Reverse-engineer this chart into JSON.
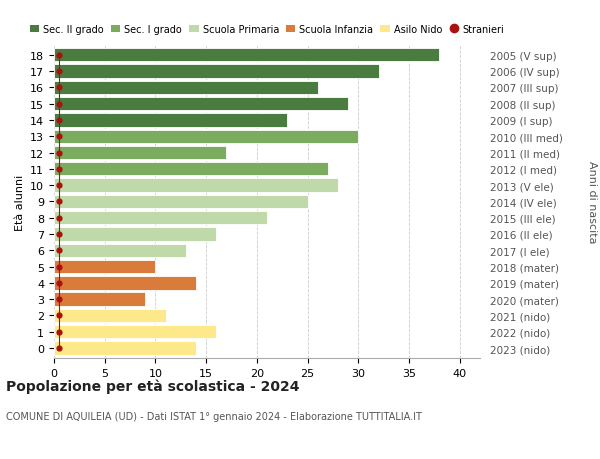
{
  "ages": [
    18,
    17,
    16,
    15,
    14,
    13,
    12,
    11,
    10,
    9,
    8,
    7,
    6,
    5,
    4,
    3,
    2,
    1,
    0
  ],
  "right_labels": [
    "2005 (V sup)",
    "2006 (IV sup)",
    "2007 (III sup)",
    "2008 (II sup)",
    "2009 (I sup)",
    "2010 (III med)",
    "2011 (II med)",
    "2012 (I med)",
    "2013 (V ele)",
    "2014 (IV ele)",
    "2015 (III ele)",
    "2016 (II ele)",
    "2017 (I ele)",
    "2018 (mater)",
    "2019 (mater)",
    "2020 (mater)",
    "2021 (nido)",
    "2022 (nido)",
    "2023 (nido)"
  ],
  "bar_values": [
    38,
    32,
    26,
    29,
    23,
    30,
    17,
    27,
    28,
    25,
    21,
    16,
    13,
    10,
    14,
    9,
    11,
    16,
    14
  ],
  "bar_colors": [
    "#4a7c3f",
    "#4a7c3f",
    "#4a7c3f",
    "#4a7c3f",
    "#4a7c3f",
    "#7aab5e",
    "#7aab5e",
    "#7aab5e",
    "#c0d9a8",
    "#c0d9a8",
    "#c0d9a8",
    "#c0d9a8",
    "#c0d9a8",
    "#d97b3a",
    "#d97b3a",
    "#d97b3a",
    "#fde98a",
    "#fde98a",
    "#fde98a"
  ],
  "stranieri_color": "#aa1111",
  "legend_labels": [
    "Sec. II grado",
    "Sec. I grado",
    "Scuola Primaria",
    "Scuola Infanzia",
    "Asilo Nido",
    "Stranieri"
  ],
  "legend_colors": [
    "#4a7c3f",
    "#7aab5e",
    "#c0d9a8",
    "#d97b3a",
    "#fde98a",
    "#aa1111"
  ],
  "title": "Popolazione per età scolastica - 2024",
  "subtitle": "COMUNE DI AQUILEIA (UD) - Dati ISTAT 1° gennaio 2024 - Elaborazione TUTTITALIA.IT",
  "ylabel_left": "Età alunni",
  "ylabel_right": "Anni di nascita",
  "xlim": [
    0,
    42
  ],
  "xticks": [
    0,
    5,
    10,
    15,
    20,
    25,
    30,
    35,
    40
  ],
  "background_color": "#ffffff",
  "grid_color": "#cccccc"
}
